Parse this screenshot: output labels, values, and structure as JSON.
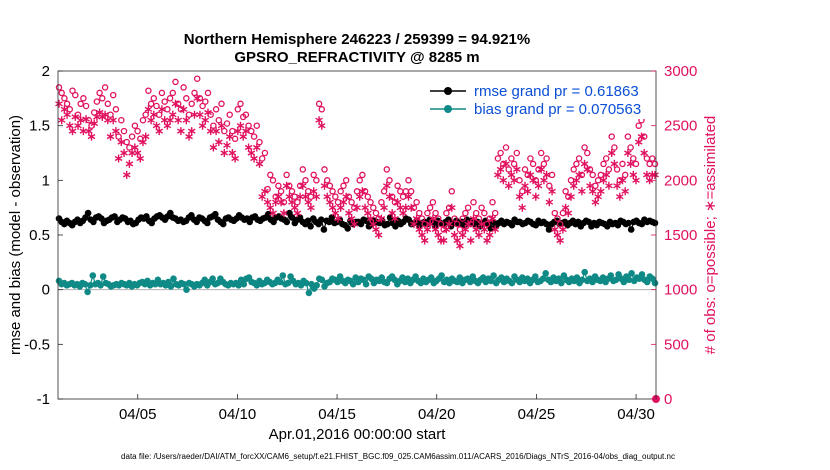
{
  "chart_data": {
    "type": "line",
    "title_line1": "Northern Hemisphere 246223 / 259399 = 94.921%",
    "title_line2": "GPSRO_REFRACTIVITY @ 8285 m",
    "xlabel": "Apr.01,2016 00:00:00 start",
    "ylabel_left": "rmse and bias (model - observation)",
    "ylabel_right": "# of obs: o=possible; ∗=assimilated",
    "xlim": [
      1,
      31
    ],
    "ylim_left": [
      -1,
      2
    ],
    "ylim_right": [
      0,
      3000
    ],
    "x_ticks": [
      5,
      10,
      15,
      20,
      25,
      30
    ],
    "x_tick_labels": [
      "04/05",
      "04/10",
      "04/15",
      "04/20",
      "04/25",
      "04/30"
    ],
    "y_left_ticks": [
      2,
      1.5,
      1,
      0.5,
      0,
      -0.5,
      -1
    ],
    "y_left_tick_labels": [
      "2",
      "1.5",
      "1",
      "0.5",
      "0",
      "-0.5",
      "-1"
    ],
    "y_right_ticks": [
      3000,
      2500,
      2000,
      1500,
      1000,
      500,
      0
    ],
    "y_right_tick_labels": [
      "3000",
      "2500",
      "2000",
      "1500",
      "1000",
      "500",
      "0"
    ],
    "footer": "data file: /Users/raeder/DAI/ATM_forcXX/CAM6_setup/f.e21.FHIST_BGC.f09_025.CAM6assim.011/ACARS_2016/Diags_NTrS_2016-04/obs_diag_output.nc",
    "legend_position": "top-right",
    "colors": {
      "rmse": "#000000",
      "bias": "#0f8a86",
      "obs": "#e0115f",
      "legend_text": "#0b4fd6",
      "zero_line": "#b0b0b0"
    },
    "series": [
      {
        "name": "rmse grand pr = 0.61863",
        "axis": "left",
        "marker": "filled-circle",
        "values": [
          0.65,
          0.62,
          0.6,
          0.63,
          0.61,
          0.59,
          0.62,
          0.64,
          0.61,
          0.63,
          0.66,
          0.7,
          0.64,
          0.62,
          0.66,
          0.67,
          0.65,
          0.61,
          0.63,
          0.64,
          0.66,
          0.67,
          0.62,
          0.64,
          0.66,
          0.65,
          0.62,
          0.63,
          0.6,
          0.61,
          0.64,
          0.66,
          0.65,
          0.67,
          0.63,
          0.61,
          0.65,
          0.67,
          0.68,
          0.66,
          0.64,
          0.67,
          0.7,
          0.66,
          0.65,
          0.63,
          0.64,
          0.62,
          0.63,
          0.66,
          0.68,
          0.64,
          0.62,
          0.66,
          0.65,
          0.63,
          0.61,
          0.66,
          0.67,
          0.69,
          0.64,
          0.62,
          0.6,
          0.65,
          0.66,
          0.64,
          0.63,
          0.65,
          0.68,
          0.66,
          0.64,
          0.65,
          0.62,
          0.66,
          0.67,
          0.64,
          0.63,
          0.65,
          0.66,
          0.69,
          0.64,
          0.62,
          0.66,
          0.67,
          0.65,
          0.64,
          0.62,
          0.7,
          0.66,
          0.61,
          0.64,
          0.66,
          0.62,
          0.6,
          0.63,
          0.58,
          0.65,
          0.62,
          0.6,
          0.64,
          0.55,
          0.63,
          0.62,
          0.66,
          0.61,
          0.62,
          0.64,
          0.6,
          0.59,
          0.56,
          0.63,
          0.6,
          0.62,
          0.62,
          0.6,
          0.64,
          0.63,
          0.58,
          0.6,
          0.63,
          0.62,
          0.61,
          0.63,
          0.59,
          0.6,
          0.66,
          0.61,
          0.58,
          0.63,
          0.6,
          0.62,
          0.65,
          0.64,
          0.6,
          0.61,
          0.63,
          0.59,
          0.61,
          0.62,
          0.6,
          0.64,
          0.62,
          0.58,
          0.63,
          0.61,
          0.6,
          0.62,
          0.64,
          0.58,
          0.61,
          0.63,
          0.6,
          0.62,
          0.59,
          0.64,
          0.61,
          0.63,
          0.6,
          0.62,
          0.58,
          0.61,
          0.63,
          0.6,
          0.56,
          0.62,
          0.58,
          0.61,
          0.63,
          0.6,
          0.62,
          0.61,
          0.59,
          0.64,
          0.62,
          0.62,
          0.6,
          0.61,
          0.63,
          0.62,
          0.6,
          0.59,
          0.63,
          0.61,
          0.62,
          0.6,
          0.55,
          0.6,
          0.62,
          0.63,
          0.6,
          0.61,
          0.62,
          0.59,
          0.61,
          0.63,
          0.6,
          0.62,
          0.58,
          0.61,
          0.63,
          0.62,
          0.58,
          0.61,
          0.59,
          0.62,
          0.61,
          0.6,
          0.58,
          0.62,
          0.6,
          0.61,
          0.59,
          0.63,
          0.62,
          0.6,
          0.61,
          0.55,
          0.62,
          0.63,
          0.61,
          0.6,
          0.64,
          0.62,
          0.63,
          0.62,
          0.61
        ]
      },
      {
        "name": "bias grand pr = 0.070563",
        "axis": "left",
        "marker": "filled-circle",
        "values": [
          0.08,
          0.05,
          0.06,
          0.04,
          0.05,
          0.06,
          0.04,
          0.05,
          0.03,
          0.06,
          0.05,
          -0.02,
          0.04,
          0.13,
          0.05,
          0.06,
          0.04,
          0.12,
          0.06,
          0.05,
          0.03,
          0.04,
          0.05,
          0.04,
          0.06,
          0.05,
          0.04,
          0.06,
          0.03,
          0.05,
          0.04,
          0.06,
          0.07,
          0.05,
          0.08,
          0.04,
          0.06,
          0.05,
          0.09,
          0.05,
          0.06,
          0.04,
          0.07,
          0.03,
          0.1,
          0.05,
          0.04,
          0.06,
          0.05,
          0.0,
          0.06,
          0.05,
          0.03,
          0.05,
          0.04,
          0.06,
          0.09,
          0.04,
          0.07,
          0.1,
          0.05,
          0.06,
          0.1,
          0.07,
          0.05,
          0.04,
          0.06,
          0.05,
          0.06,
          0.04,
          0.09,
          0.05,
          0.1,
          0.11,
          0.07,
          0.06,
          0.04,
          0.08,
          0.05,
          0.06,
          0.09,
          0.07,
          0.05,
          0.06,
          0.09,
          0.07,
          0.13,
          0.05,
          0.06,
          0.12,
          0.08,
          0.05,
          0.06,
          0.04,
          0.08,
          0.06,
          -0.03,
          0.05,
          0.01,
          0.04,
          0.1,
          0.09,
          0.03,
          0.06,
          0.07,
          0.1,
          0.09,
          0.07,
          0.12,
          0.08,
          0.06,
          0.09,
          0.08,
          0.05,
          0.11,
          0.07,
          0.1,
          0.09,
          0.05,
          0.12,
          0.1,
          0.06,
          0.09,
          0.08,
          0.11,
          0.07,
          0.06,
          0.1,
          0.12,
          0.09,
          0.05,
          0.08,
          0.11,
          0.07,
          0.1,
          0.06,
          0.09,
          0.12,
          0.08,
          0.06,
          0.1,
          0.07,
          0.09,
          0.11,
          0.06,
          0.08,
          0.1,
          0.13,
          0.07,
          0.09,
          0.06,
          0.1,
          0.08,
          0.07,
          0.11,
          0.06,
          0.09,
          0.1,
          0.07,
          0.12,
          0.08,
          0.06,
          0.09,
          0.11,
          0.07,
          0.1,
          0.08,
          0.13,
          0.06,
          0.09,
          0.11,
          0.07,
          0.1,
          0.08,
          0.06,
          0.12,
          0.09,
          0.07,
          0.11,
          0.08,
          0.1,
          0.06,
          0.09,
          0.12,
          0.07,
          0.08,
          0.1,
          0.15,
          0.09,
          0.07,
          0.11,
          0.08,
          0.1,
          0.06,
          0.13,
          0.09,
          0.07,
          0.1,
          0.08,
          0.11,
          0.06,
          0.09,
          0.16,
          0.08,
          0.1,
          0.07,
          0.12,
          0.09,
          0.08,
          0.11,
          0.07,
          0.1,
          0.13,
          0.08,
          0.09,
          0.14,
          0.1,
          0.07,
          0.12,
          0.09,
          0.15,
          0.08,
          0.11,
          0.1,
          0.14,
          0.09,
          0.07,
          0.12,
          0.1,
          0.06
        ]
      },
      {
        "name": "# obs possible",
        "axis": "right",
        "marker": "open-circle",
        "values": [
          2850,
          2800,
          2750,
          2700,
          2650,
          2820,
          2780,
          2600,
          2700,
          2750,
          2680,
          2550,
          2500,
          2620,
          2720,
          2800,
          2750,
          2850,
          2700,
          2600,
          2780,
          2650,
          2400,
          2550,
          2450,
          2350,
          2300,
          2400,
          2500,
          2450,
          2380,
          2550,
          2600,
          2820,
          2700,
          2750,
          2680,
          2600,
          2800,
          2720,
          2650,
          2750,
          2800,
          2900,
          2700,
          2650,
          2850,
          2750,
          2600,
          2700,
          2800,
          2930,
          2750,
          2680,
          2720,
          2800,
          2600,
          2500,
          2650,
          2550,
          2700,
          2450,
          2520,
          2600,
          2450,
          2380,
          2650,
          2700,
          2580,
          2600,
          2500,
          2450,
          2400,
          2500,
          2350,
          2200,
          2250,
          1920,
          2050,
          2000,
          1850,
          1950,
          1900,
          1800,
          2050,
          1950,
          1900,
          1850,
          1800,
          1950,
          2100,
          2000,
          1900,
          1850,
          2050,
          2000,
          2700,
          2650,
          2100,
          2000,
          1950,
          1900,
          1850,
          1800,
          1900,
          1950,
          2000,
          1850,
          1800,
          1750,
          1900,
          2000,
          2050,
          1900,
          1850,
          1800,
          1750,
          1700,
          1650,
          1800,
          1900,
          2100,
          2000,
          1850,
          1800,
          1950,
          1900,
          1850,
          1900,
          2000,
          1900,
          1750,
          1800,
          1700,
          1650,
          1600,
          1700,
          1750,
          1800,
          1700,
          1650,
          1600,
          1550,
          1700,
          1750,
          1900,
          1650,
          1600,
          1550,
          1650,
          1700,
          1750,
          1600,
          1800,
          1700,
          1650,
          1750,
          1700,
          1600,
          1650,
          1800,
          1700,
          2200,
          2250,
          2150,
          2300,
          2100,
          2200,
          2150,
          2250,
          2000,
          1900,
          2100,
          2050,
          2200,
          2150,
          2000,
          2100,
          2250,
          2150,
          2200,
          1950,
          2050,
          1700,
          1650,
          1600,
          1700,
          1900,
          1850,
          2000,
          2100,
          2150,
          2200,
          2050,
          2300,
          2250,
          2100,
          2050,
          1950,
          2000,
          2050,
          2150,
          2200,
          2100,
          2400,
          2300,
          2100,
          2000,
          2150,
          2050,
          2400,
          2300,
          2200,
          2150,
          2500,
          2550,
          2400,
          2200,
          2150,
          2200,
          2150
        ]
      },
      {
        "name": "# obs assimilated",
        "axis": "right",
        "marker": "asterisk",
        "values": [
          2700,
          2550,
          2650,
          2600,
          2500,
          2450,
          2580,
          2500,
          2550,
          2450,
          2560,
          2450,
          2400,
          2520,
          2580,
          2620,
          2580,
          2600,
          2550,
          2400,
          2550,
          2450,
          2200,
          2350,
          2250,
          2050,
          2150,
          2250,
          2300,
          2250,
          2200,
          2350,
          2400,
          2650,
          2550,
          2600,
          2500,
          2450,
          2650,
          2550,
          2500,
          2550,
          2600,
          2700,
          2550,
          2450,
          2650,
          2550,
          2400,
          2450,
          2600,
          2750,
          2600,
          2500,
          2550,
          2620,
          2450,
          2300,
          2450,
          2350,
          2500,
          2250,
          2320,
          2400,
          2250,
          2200,
          2450,
          2500,
          2400,
          2450,
          2300,
          2250,
          2200,
          2300,
          2150,
          1850,
          1900,
          1800,
          1750,
          1700,
          1800,
          1850,
          1800,
          1700,
          1950,
          1850,
          1800,
          1750,
          1700,
          1850,
          1950,
          1850,
          1800,
          1750,
          1900,
          1850,
          2550,
          2500,
          1950,
          1850,
          1800,
          1750,
          1700,
          1650,
          1750,
          1800,
          1850,
          1700,
          1650,
          1600,
          1750,
          1850,
          1900,
          1750,
          1700,
          1650,
          1600,
          1550,
          1500,
          1650,
          1750,
          1950,
          1850,
          1700,
          1650,
          1800,
          1750,
          1700,
          1750,
          1850,
          1750,
          1600,
          1650,
          1550,
          1500,
          1450,
          1550,
          1600,
          1650,
          1550,
          1500,
          1450,
          1450,
          1550,
          1600,
          1750,
          1500,
          1450,
          1400,
          1500,
          1550,
          1600,
          1450,
          1650,
          1550,
          1500,
          1600,
          1550,
          1450,
          1500,
          1650,
          1550,
          2050,
          2100,
          2000,
          2150,
          1950,
          2050,
          2000,
          2100,
          1850,
          1750,
          1950,
          1900,
          2050,
          2000,
          1850,
          1950,
          2100,
          2000,
          2050,
          1800,
          1900,
          1550,
          1500,
          1450,
          1550,
          1750,
          1700,
          1850,
          1950,
          2000,
          2050,
          1900,
          2150,
          2100,
          1950,
          1900,
          1800,
          1850,
          1900,
          2000,
          2050,
          1950,
          2250,
          2150,
          1950,
          1850,
          2000,
          1900,
          2250,
          2150,
          2050,
          2000,
          2350,
          2400,
          2250,
          2050,
          2000,
          2050,
          2050
        ]
      }
    ],
    "legend_entries": [
      "rmse grand pr = 0.61863",
      "bias grand pr = 0.070563"
    ]
  }
}
